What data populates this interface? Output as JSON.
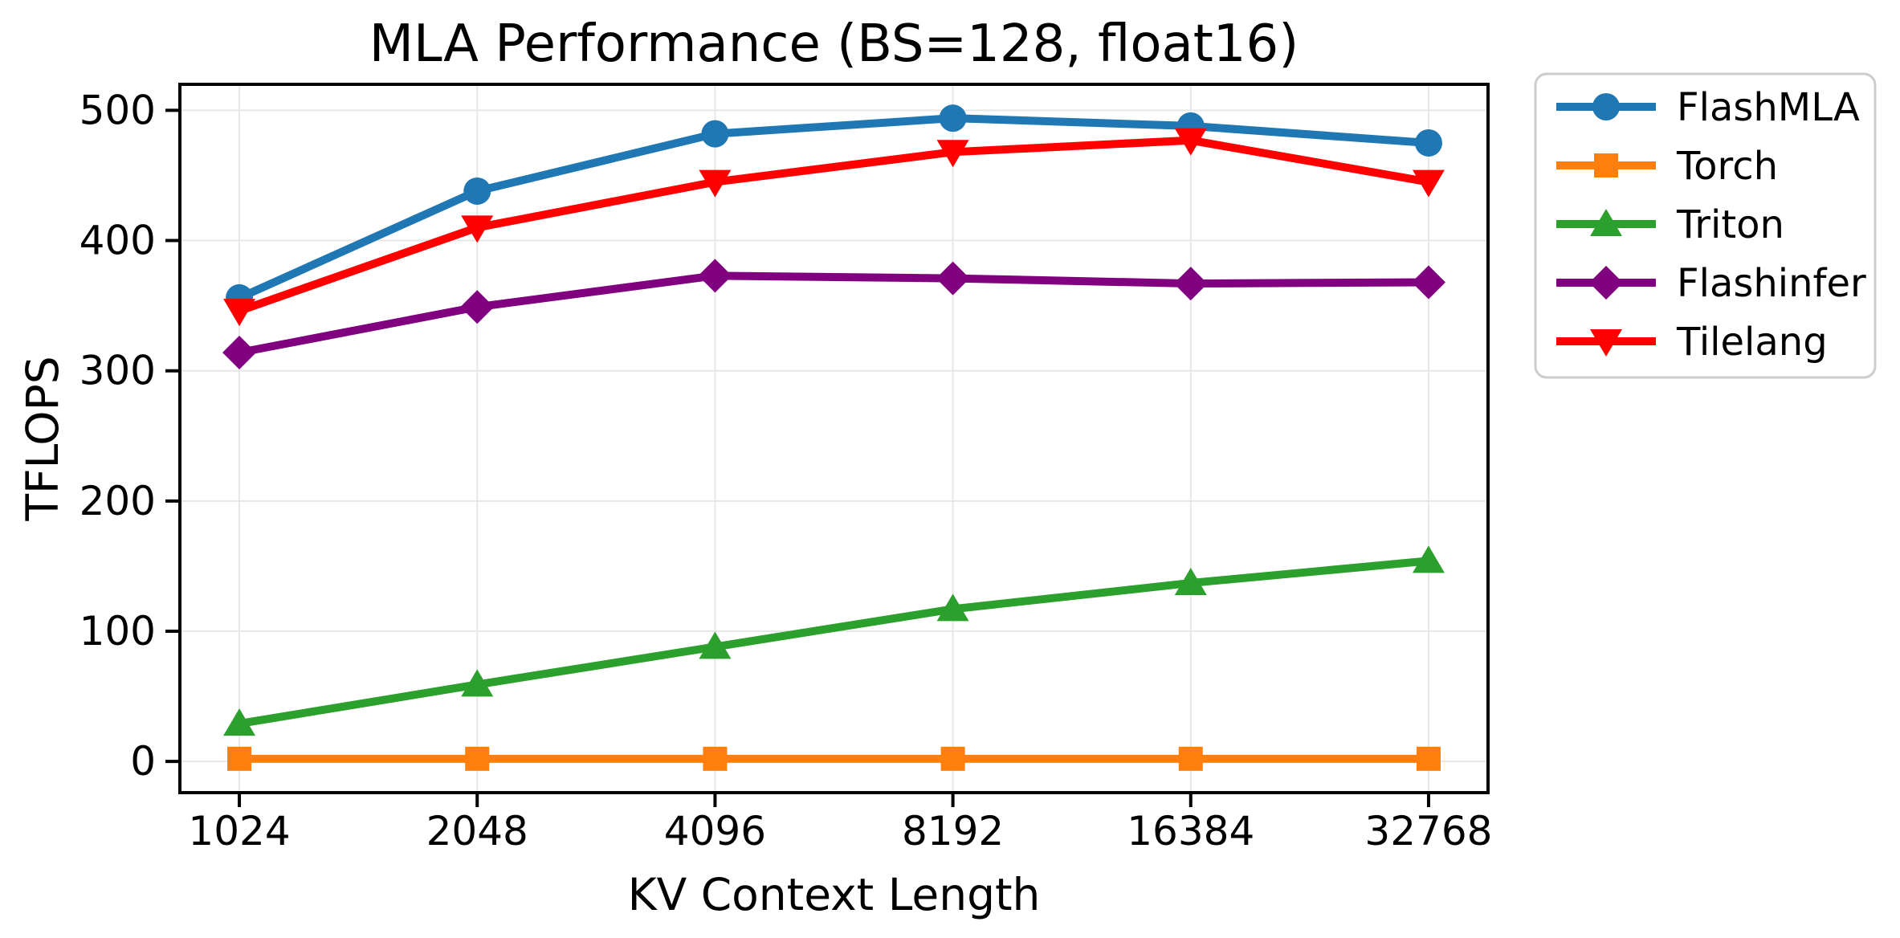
{
  "chart_data": {
    "type": "line",
    "title": "MLA Performance (BS=128, float16)",
    "xlabel": "KV Context Length",
    "ylabel": "TFLOPS",
    "x_scale": "log2",
    "categories": [
      1024,
      2048,
      4096,
      8192,
      16384,
      32768
    ],
    "xticks": [
      "1024",
      "2048",
      "4096",
      "8192",
      "16384",
      "32768"
    ],
    "yticks": [
      0,
      100,
      200,
      300,
      400,
      500
    ],
    "ylim": [
      -24,
      520
    ],
    "grid": true,
    "legend_position": "outside-upper-right",
    "series": [
      {
        "name": "FlashMLA",
        "color": "#1f77b4",
        "marker": "circle",
        "values": [
          356,
          438,
          482,
          494,
          488,
          475
        ]
      },
      {
        "name": "Torch",
        "color": "#ff7f0e",
        "marker": "square",
        "values": [
          2,
          2,
          2,
          2,
          2,
          2
        ]
      },
      {
        "name": "Triton",
        "color": "#2ca02c",
        "marker": "triangle-up",
        "values": [
          29,
          59,
          88,
          117,
          137,
          154
        ]
      },
      {
        "name": "Flashinfer",
        "color": "#800080",
        "marker": "diamond",
        "values": [
          314,
          349,
          373,
          371,
          367,
          368
        ]
      },
      {
        "name": "Tilelang",
        "color": "#ff0000",
        "marker": "triangle-down",
        "values": [
          346,
          410,
          445,
          468,
          477,
          445
        ]
      }
    ],
    "styles": {
      "background": "#ffffff",
      "grid_color": "#e7e7e7",
      "axis_color": "#000000",
      "text_color": "#000000",
      "legend_border_color": "#cccccc",
      "legend_background": "#ffffff"
    }
  }
}
